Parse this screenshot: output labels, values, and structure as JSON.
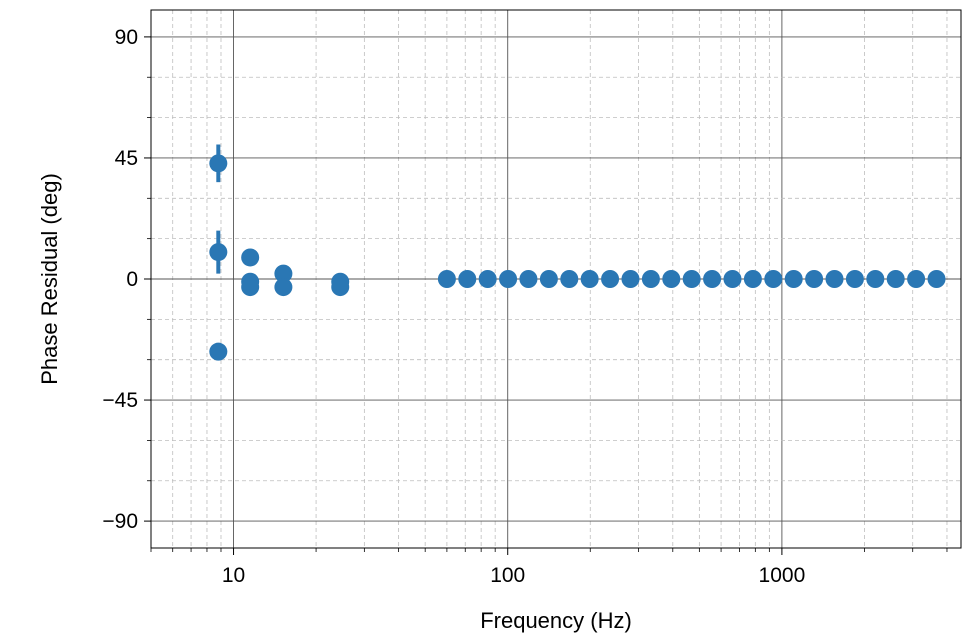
{
  "chart_data": {
    "type": "scatter",
    "title": "",
    "xlabel": "Frequency (Hz)",
    "ylabel": "Phase Residual (deg)",
    "xscale": "log",
    "xlim": [
      5,
      4500
    ],
    "ylim": [
      -100,
      100
    ],
    "xticks": [
      10,
      100,
      1000
    ],
    "xtick_labels": [
      "10",
      "100",
      "1000"
    ],
    "yticks": [
      90,
      45,
      0,
      -45,
      -90
    ],
    "ytick_labels": [
      "90",
      "45",
      "0",
      "−45",
      "−90"
    ],
    "grid": true,
    "legend": "none",
    "color": "#2a77b4",
    "points": [
      {
        "x": 8.8,
        "y": 43,
        "err": 7
      },
      {
        "x": 8.8,
        "y": 10,
        "err": 8
      },
      {
        "x": 8.8,
        "y": -27,
        "err": 0
      },
      {
        "x": 11.5,
        "y": 8,
        "err": 0
      },
      {
        "x": 11.5,
        "y": -1,
        "err": 0
      },
      {
        "x": 11.5,
        "y": -3,
        "err": 0
      },
      {
        "x": 15.2,
        "y": 2,
        "err": 0
      },
      {
        "x": 15.2,
        "y": -3,
        "err": 0
      },
      {
        "x": 24.5,
        "y": -1,
        "err": 0
      },
      {
        "x": 24.5,
        "y": -3,
        "err": 0
      },
      {
        "x": 60,
        "y": 0,
        "err": 0
      },
      {
        "x": 71.2,
        "y": 0,
        "err": 0
      },
      {
        "x": 84.5,
        "y": 0,
        "err": 0
      },
      {
        "x": 100.3,
        "y": 0,
        "err": 0
      },
      {
        "x": 119,
        "y": 0,
        "err": 0
      },
      {
        "x": 141.3,
        "y": 0,
        "err": 0
      },
      {
        "x": 167.7,
        "y": 0,
        "err": 0
      },
      {
        "x": 199,
        "y": 0,
        "err": 0
      },
      {
        "x": 236.2,
        "y": 0,
        "err": 0
      },
      {
        "x": 280.4,
        "y": 0,
        "err": 0
      },
      {
        "x": 332.8,
        "y": 0,
        "err": 0
      },
      {
        "x": 395,
        "y": 0,
        "err": 0
      },
      {
        "x": 468.8,
        "y": 0,
        "err": 0
      },
      {
        "x": 556.4,
        "y": 0,
        "err": 0
      },
      {
        "x": 660.4,
        "y": 0,
        "err": 0
      },
      {
        "x": 783.8,
        "y": 0,
        "err": 0
      },
      {
        "x": 930.3,
        "y": 0,
        "err": 0
      },
      {
        "x": 1104.2,
        "y": 0,
        "err": 0
      },
      {
        "x": 1310.6,
        "y": 0,
        "err": 0
      },
      {
        "x": 1555.5,
        "y": 0,
        "err": 0
      },
      {
        "x": 1846.2,
        "y": 0,
        "err": 0
      },
      {
        "x": 2191.3,
        "y": 0,
        "err": 0
      },
      {
        "x": 2600.8,
        "y": 0,
        "err": 0
      },
      {
        "x": 3086.9,
        "y": 0,
        "err": 0
      },
      {
        "x": 3663.8,
        "y": 0,
        "err": 0
      }
    ]
  }
}
